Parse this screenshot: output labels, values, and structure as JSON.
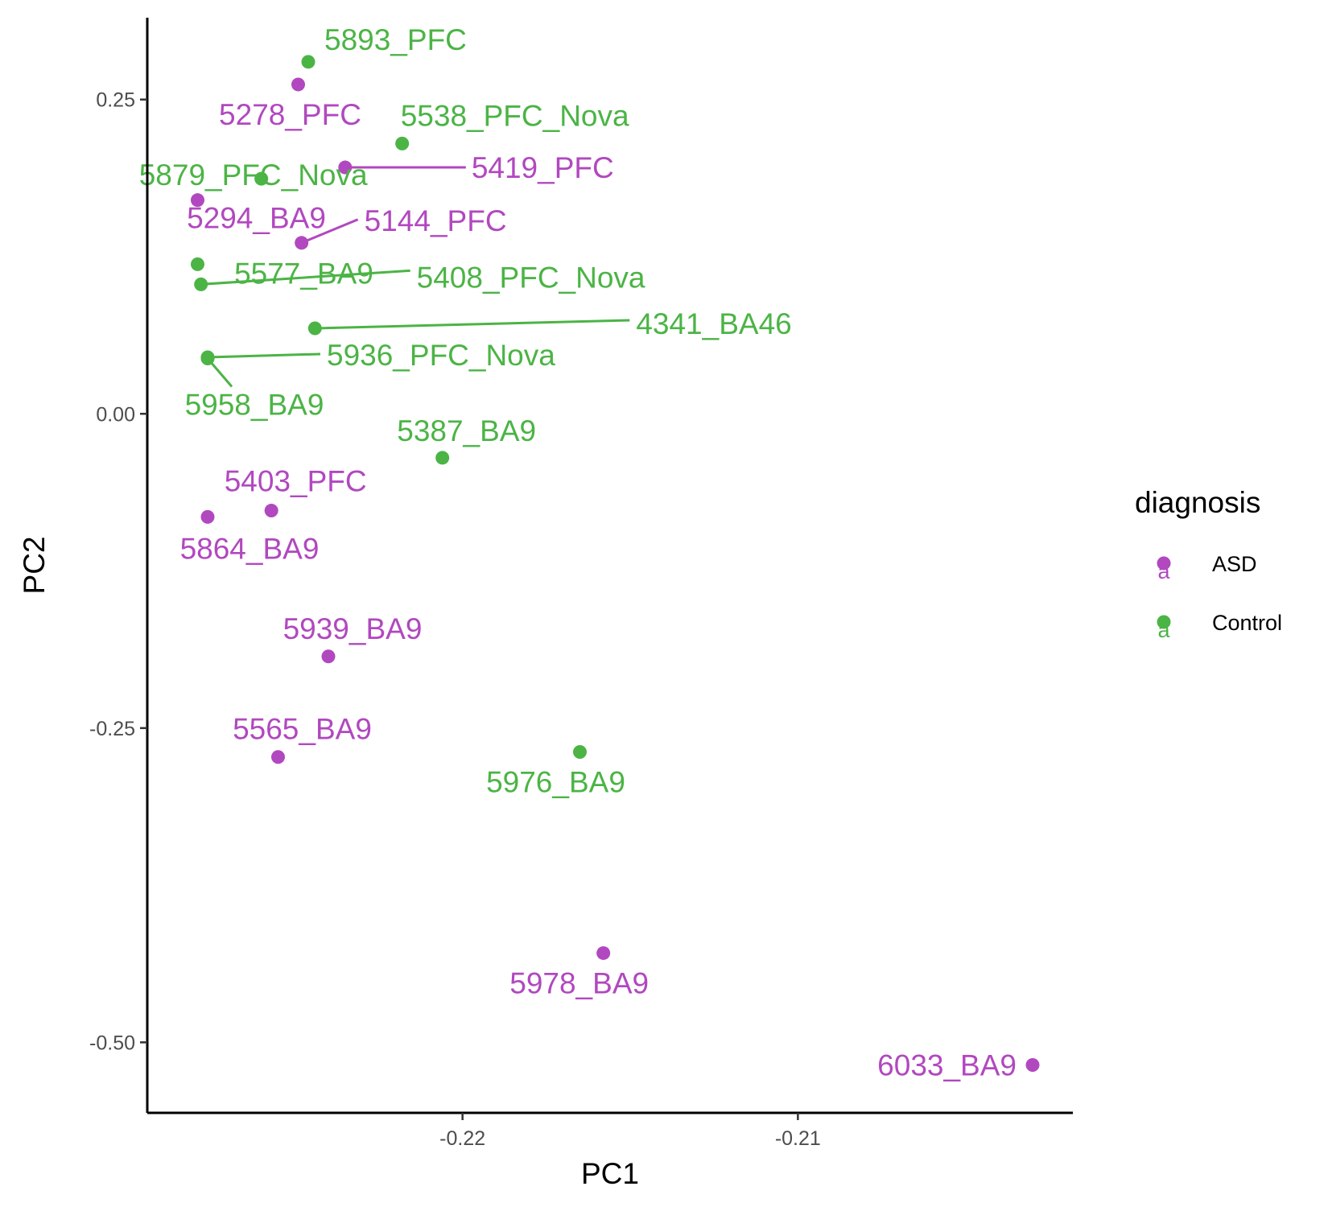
{
  "chart_data": {
    "type": "scatter",
    "xlabel": "PC1",
    "ylabel": "PC2",
    "xlim": [
      -0.2294,
      -0.2018
    ],
    "ylim": [
      -0.5561,
      0.3151
    ],
    "x_ticks": [
      {
        "value": -0.22,
        "label": "-0.22"
      },
      {
        "value": -0.21,
        "label": "-0.21"
      }
    ],
    "y_ticks": [
      {
        "value": 0.25,
        "label": "0.25"
      },
      {
        "value": 0.0,
        "label": "0.00"
      },
      {
        "value": -0.25,
        "label": "-0.25"
      },
      {
        "value": -0.5,
        "label": "-0.50"
      }
    ],
    "grid": false,
    "legend": {
      "title": "diagnosis",
      "placement": "right",
      "glyph": "a",
      "entries": [
        {
          "name": "ASD",
          "color": "#B148BF"
        },
        {
          "name": "Control",
          "color": "#4BB445"
        }
      ]
    },
    "series": [
      {
        "name": "ASD",
        "color": "#B148BF",
        "points": [
          {
            "label": "5278_PFC",
            "x": -0.2249,
            "y": 0.262
          },
          {
            "label": "5419_PFC",
            "x": -0.2235,
            "y": 0.196
          },
          {
            "label": "5294_BA9",
            "x": -0.2279,
            "y": 0.17
          },
          {
            "label": "5144_PFC",
            "x": -0.2248,
            "y": 0.136
          },
          {
            "label": "5403_PFC",
            "x": -0.2257,
            "y": -0.077
          },
          {
            "label": "5864_BA9",
            "x": -0.2276,
            "y": -0.082
          },
          {
            "label": "5939_BA9",
            "x": -0.224,
            "y": -0.193
          },
          {
            "label": "5565_BA9",
            "x": -0.2255,
            "y": -0.273
          },
          {
            "label": "5978_BA9",
            "x": -0.2158,
            "y": -0.429
          },
          {
            "label": "6033_BA9",
            "x": -0.203,
            "y": -0.518
          }
        ]
      },
      {
        "name": "Control",
        "color": "#4BB445",
        "points": [
          {
            "label": "5893_PFC",
            "x": -0.2246,
            "y": 0.28
          },
          {
            "label": "5538_PFC_Nova",
            "x": -0.2218,
            "y": 0.215
          },
          {
            "label": "5879_PFC_Nova",
            "x": -0.226,
            "y": 0.187
          },
          {
            "label": "5577_BA9",
            "x": -0.2279,
            "y": 0.119
          },
          {
            "label": "5408_PFC_Nova",
            "x": -0.2278,
            "y": 0.103
          },
          {
            "label": "4341_BA46",
            "x": -0.2244,
            "y": 0.068
          },
          {
            "label": "5936_PFC_Nova",
            "x": -0.2276,
            "y": 0.045
          },
          {
            "label": "5958_BA9",
            "x": -0.2276,
            "y": 0.044
          },
          {
            "label": "5387_BA9",
            "x": -0.2206,
            "y": -0.035
          },
          {
            "label": "5976_BA9",
            "x": -0.2165,
            "y": -0.269
          }
        ]
      }
    ]
  }
}
